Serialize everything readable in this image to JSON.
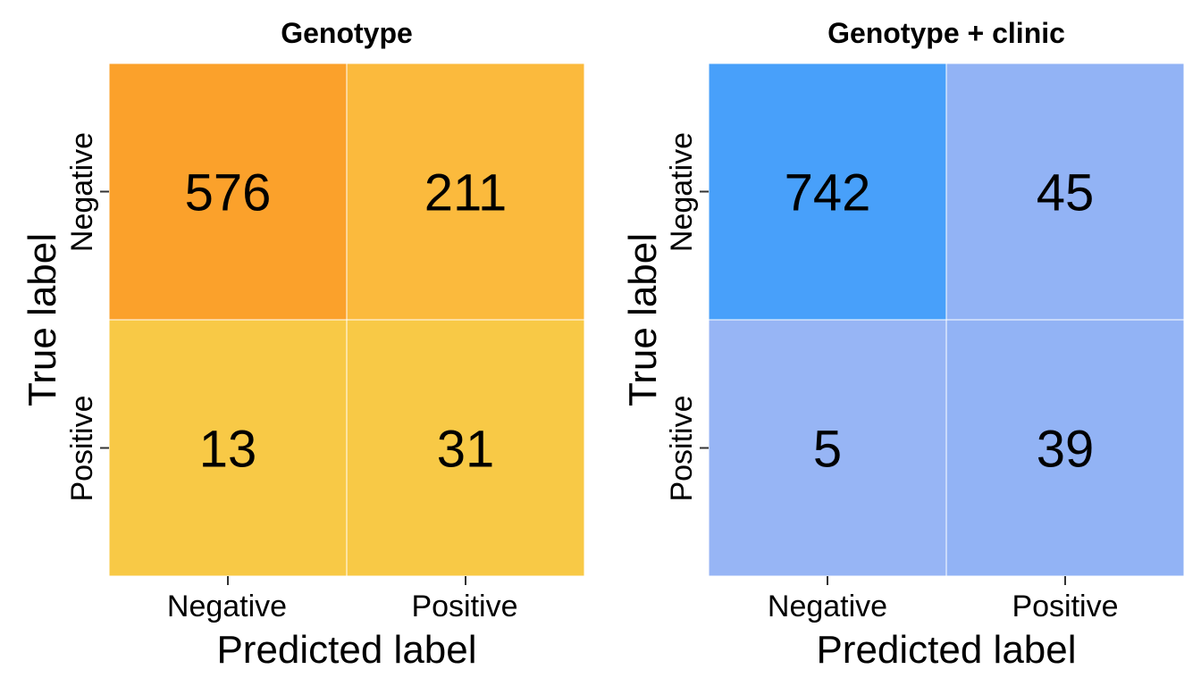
{
  "chart_data": [
    {
      "type": "heatmap",
      "title": "Genotype",
      "xlabel": "Predicted label",
      "ylabel": "True label",
      "x_categories": [
        "Negative",
        "Positive"
      ],
      "y_categories": [
        "Negative",
        "Positive"
      ],
      "values": [
        [
          576,
          211
        ],
        [
          13,
          31
        ]
      ],
      "colors": [
        [
          "#fba12b",
          "#fbba3d"
        ],
        [
          "#f8c946",
          "#f8c946"
        ]
      ],
      "grid": false,
      "legend": "none"
    },
    {
      "type": "heatmap",
      "title": "Genotype + clinic",
      "xlabel": "Predicted label",
      "ylabel": "True label",
      "x_categories": [
        "Negative",
        "Positive"
      ],
      "y_categories": [
        "Negative",
        "Positive"
      ],
      "values": [
        [
          742,
          45
        ],
        [
          5,
          39
        ]
      ],
      "colors": [
        [
          "#48a0fa",
          "#92b3f5"
        ],
        [
          "#97b5f5",
          "#92b3f5"
        ]
      ],
      "grid": false,
      "legend": "none"
    }
  ]
}
